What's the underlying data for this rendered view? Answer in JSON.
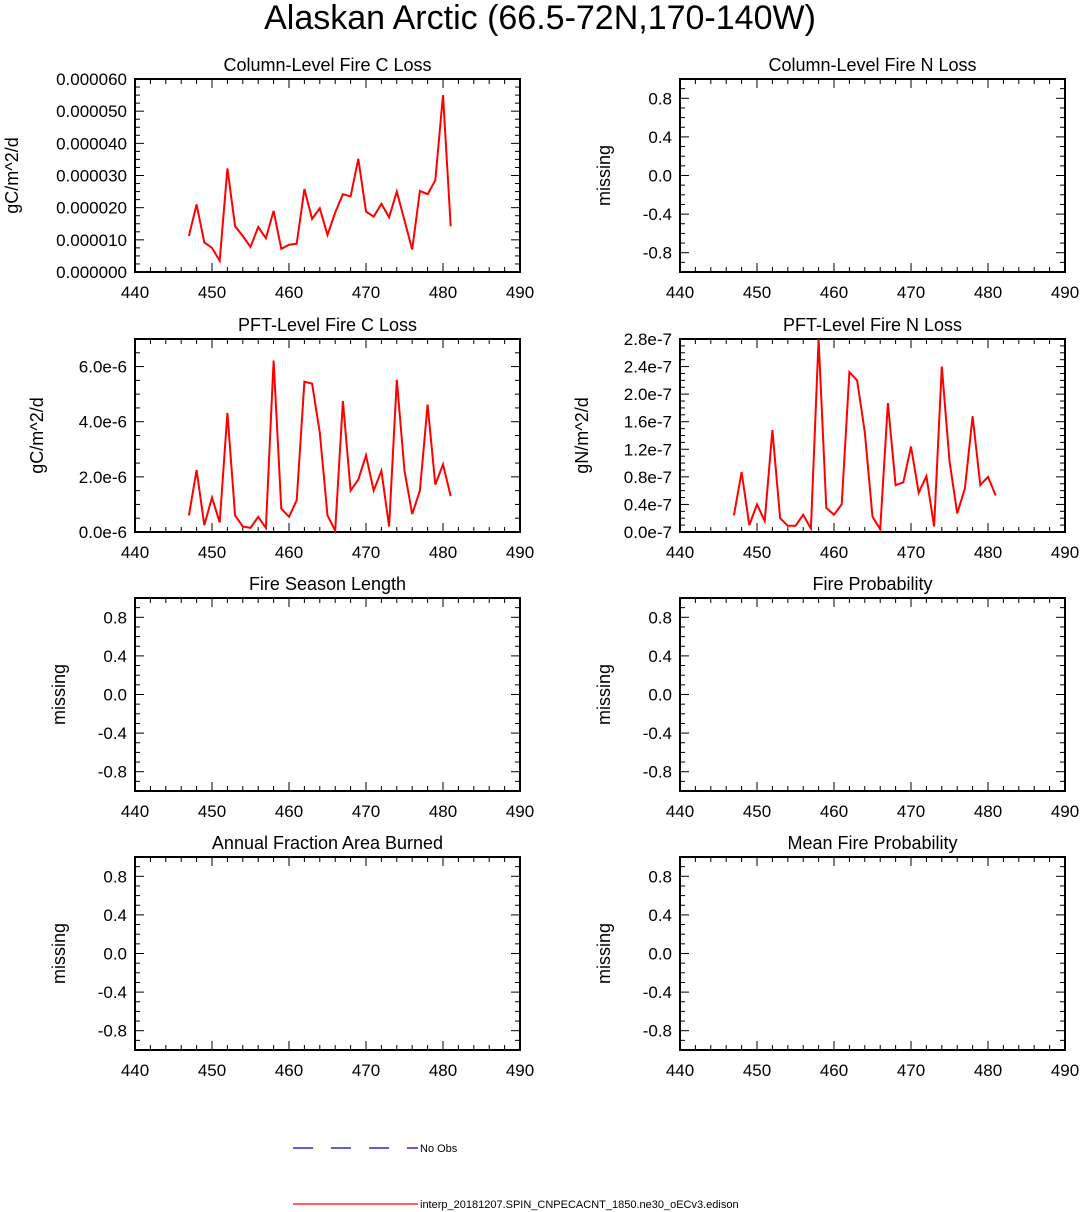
{
  "figure": {
    "title": "Alaskan Arctic (66.5-72N,170-140W)"
  },
  "legend": [
    {
      "label": "No Obs",
      "color": "#0000cc",
      "style": "dashed"
    },
    {
      "label": "interp_20181207.SPIN_CNPECACNT_1850.ne30_oECv3.edison",
      "color": "#ff0000",
      "style": "solid"
    }
  ],
  "chart_data": [
    {
      "type": "line",
      "title": "Column-Level Fire C Loss",
      "ylabel": "gC/m^2/d",
      "xlim": [
        440,
        490
      ],
      "xticks": [
        "440",
        "450",
        "460",
        "470",
        "480",
        "490"
      ],
      "ylim": [
        0,
        6e-05
      ],
      "yticks": [
        0,
        1e-05,
        2e-05,
        3e-05,
        4e-05,
        5e-05,
        6e-05
      ],
      "ytick_labels": [
        "0.000000",
        "0.000010",
        "0.000020",
        "0.000030",
        "0.000040",
        "0.000050",
        "0.000060"
      ],
      "series": [
        {
          "name": "interp_20181207.SPIN_CNPECACNT_1850.ne30_oECv3.edison",
          "color": "#ff0000",
          "x": [
            447,
            448,
            449,
            450,
            451,
            452,
            453,
            454,
            455,
            456,
            457,
            458,
            459,
            460,
            461,
            462,
            463,
            464,
            465,
            466,
            467,
            468,
            469,
            470,
            471,
            472,
            473,
            474,
            475,
            476,
            477,
            478,
            479,
            480,
            481
          ],
          "y": [
            1.12e-05,
            2.1e-05,
            9.2e-06,
            7.5e-06,
            3.5e-06,
            3.22e-05,
            1.42e-05,
            1.12e-05,
            7.8e-06,
            1.4e-05,
            1.05e-05,
            1.9e-05,
            7.2e-06,
            8.5e-06,
            8.8e-06,
            2.58e-05,
            1.65e-05,
            1.98e-05,
            1.15e-05,
            1.85e-05,
            2.42e-05,
            2.35e-05,
            3.52e-05,
            1.88e-05,
            1.72e-05,
            2.12e-05,
            1.7e-05,
            2.5e-05,
            1.6e-05,
            7e-06,
            2.52e-05,
            2.42e-05,
            2.85e-05,
            5.5e-05,
            1.42e-05
          ]
        }
      ]
    },
    {
      "type": "line",
      "title": "Column-Level Fire N Loss",
      "ylabel": "missing",
      "xlim": [
        440,
        490
      ],
      "xticks": [
        "440",
        "450",
        "460",
        "470",
        "480",
        "490"
      ],
      "ylim": [
        -1,
        1
      ],
      "yticks": [
        -0.8,
        -0.4,
        0.0,
        0.4,
        0.8
      ],
      "ytick_labels": [
        "-0.8",
        "-0.4",
        "0.0",
        "0.4",
        "0.8"
      ],
      "series": []
    },
    {
      "type": "line",
      "title": "PFT-Level Fire C Loss",
      "ylabel": "gC/m^2/d",
      "xlim": [
        440,
        490
      ],
      "xticks": [
        "440",
        "450",
        "460",
        "470",
        "480",
        "490"
      ],
      "ylim": [
        0,
        7e-06
      ],
      "yticks": [
        0,
        2e-06,
        4e-06,
        6e-06
      ],
      "ytick_labels": [
        "0.0e-6",
        "2.0e-6",
        "4.0e-6",
        "6.0e-6"
      ],
      "series": [
        {
          "name": "interp_20181207.SPIN_CNPECACNT_1850.ne30_oECv3.edison",
          "color": "#ff0000",
          "x": [
            447,
            448,
            449,
            450,
            451,
            452,
            453,
            454,
            455,
            456,
            457,
            458,
            459,
            460,
            461,
            462,
            463,
            464,
            465,
            466,
            467,
            468,
            469,
            470,
            471,
            472,
            473,
            474,
            475,
            476,
            477,
            478,
            479,
            480,
            481
          ],
          "y": [
            6e-07,
            2.25e-06,
            2.5e-07,
            1.25e-06,
            3.5e-07,
            4.32e-06,
            6e-07,
            2e-07,
            1.5e-07,
            5.5e-07,
            1.5e-07,
            6.22e-06,
            8.5e-07,
            5.5e-07,
            1.15e-06,
            5.45e-06,
            5.38e-06,
            3.6e-06,
            6e-07,
            5e-08,
            4.75e-06,
            1.5e-06,
            1.9e-06,
            2.78e-06,
            1.5e-06,
            2.22e-06,
            2e-07,
            5.52e-06,
            2.22e-06,
            6.5e-07,
            1.5e-06,
            4.62e-06,
            1.72e-06,
            2.45e-06,
            1.3e-06
          ]
        }
      ]
    },
    {
      "type": "line",
      "title": "PFT-Level Fire N Loss",
      "ylabel": "gN/m^2/d",
      "xlim": [
        440,
        490
      ],
      "xticks": [
        "440",
        "450",
        "460",
        "470",
        "480",
        "490"
      ],
      "ylim": [
        0,
        2.8e-07
      ],
      "yticks": [
        0,
        4e-08,
        8e-08,
        1.2e-07,
        1.6e-07,
        2e-07,
        2.4e-07,
        2.8e-07
      ],
      "ytick_labels": [
        "0.0e-7",
        "0.4e-7",
        "0.8e-7",
        "1.2e-7",
        "1.6e-7",
        "2.0e-7",
        "2.4e-7",
        "2.8e-7"
      ],
      "series": [
        {
          "name": "interp_20181207.SPIN_CNPECACNT_1850.ne30_oECv3.edison",
          "color": "#ff0000",
          "x": [
            447,
            448,
            449,
            450,
            451,
            452,
            453,
            454,
            455,
            456,
            457,
            458,
            459,
            460,
            461,
            462,
            463,
            464,
            465,
            466,
            467,
            468,
            469,
            470,
            471,
            472,
            473,
            474,
            475,
            476,
            477,
            478,
            479,
            480,
            481
          ],
          "y": [
            2.4e-08,
            8.7e-08,
            1e-08,
            4e-08,
            1.6e-08,
            1.48e-07,
            2e-08,
            9e-09,
            9e-09,
            2.5e-08,
            5e-09,
            2.8e-07,
            3.5e-08,
            2.5e-08,
            4e-08,
            2.32e-07,
            2.2e-07,
            1.45e-07,
            2.2e-08,
            4e-09,
            1.87e-07,
            6.8e-08,
            7.2e-08,
            1.24e-07,
            5.7e-08,
            8.1e-08,
            8e-09,
            2.4e-07,
            1.03e-07,
            2.7e-08,
            6.3e-08,
            1.68e-07,
            6.8e-08,
            8e-08,
            5.3e-08
          ]
        }
      ]
    },
    {
      "type": "line",
      "title": "Fire Season Length",
      "ylabel": "missing",
      "xlim": [
        440,
        490
      ],
      "xticks": [
        "440",
        "450",
        "460",
        "470",
        "480",
        "490"
      ],
      "ylim": [
        -1,
        1
      ],
      "yticks": [
        -0.8,
        -0.4,
        0.0,
        0.4,
        0.8
      ],
      "ytick_labels": [
        "-0.8",
        "-0.4",
        "0.0",
        "0.4",
        "0.8"
      ],
      "series": []
    },
    {
      "type": "line",
      "title": "Fire Probability",
      "ylabel": "missing",
      "xlim": [
        440,
        490
      ],
      "xticks": [
        "440",
        "450",
        "460",
        "470",
        "480",
        "490"
      ],
      "ylim": [
        -1,
        1
      ],
      "yticks": [
        -0.8,
        -0.4,
        0.0,
        0.4,
        0.8
      ],
      "ytick_labels": [
        "-0.8",
        "-0.4",
        "0.0",
        "0.4",
        "0.8"
      ],
      "series": []
    },
    {
      "type": "line",
      "title": "Annual Fraction Area Burned",
      "ylabel": "missing",
      "xlim": [
        440,
        490
      ],
      "xticks": [
        "440",
        "450",
        "460",
        "470",
        "480",
        "490"
      ],
      "ylim": [
        -1,
        1
      ],
      "yticks": [
        -0.8,
        -0.4,
        0.0,
        0.4,
        0.8
      ],
      "ytick_labels": [
        "-0.8",
        "-0.4",
        "0.0",
        "0.4",
        "0.8"
      ],
      "series": []
    },
    {
      "type": "line",
      "title": "Mean Fire Probability",
      "ylabel": "missing",
      "xlim": [
        440,
        490
      ],
      "xticks": [
        "440",
        "450",
        "460",
        "470",
        "480",
        "490"
      ],
      "ylim": [
        -1,
        1
      ],
      "yticks": [
        -0.8,
        -0.4,
        0.0,
        0.4,
        0.8
      ],
      "ytick_labels": [
        "-0.8",
        "-0.4",
        "0.0",
        "0.4",
        "0.8"
      ],
      "series": []
    }
  ]
}
